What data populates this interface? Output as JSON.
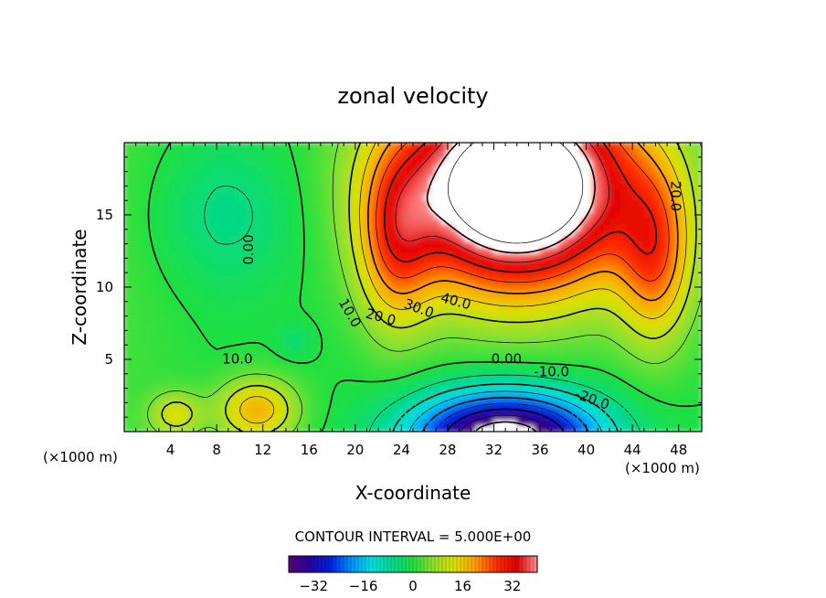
{
  "chart_data": {
    "type": "heatmap",
    "title": "zonal velocity",
    "xlabel": "X-coordinate",
    "ylabel": "Z-coordinate",
    "x_unit": "(×1000 m)",
    "x_unit_right": "(×1000 m)",
    "xlim": [
      0,
      50
    ],
    "ylim": [
      0,
      20
    ],
    "x_ticks": [
      4,
      8,
      12,
      16,
      20,
      24,
      28,
      32,
      36,
      40,
      44,
      48
    ],
    "y_ticks": [
      5,
      10,
      15
    ],
    "contour_interval_text": "CONTOUR INTERVAL = 5.000E+00",
    "colorbar": {
      "range": [
        -40,
        40
      ],
      "ticks": [
        -32,
        -16,
        0,
        16,
        32
      ],
      "colors": [
        "#5a0078",
        "#2a00a0",
        "#0020e0",
        "#0090ff",
        "#00e0e0",
        "#00d890",
        "#20e040",
        "#90e030",
        "#e0e000",
        "#ffa000",
        "#ff3000",
        "#e00000",
        "#ff9090"
      ]
    },
    "contour_labels": [
      {
        "text": "0.00",
        "x": 10.8,
        "y": 12.6,
        "rotate": -90
      },
      {
        "text": "10.0",
        "x": 9.8,
        "y": 5.0,
        "rotate": 0
      },
      {
        "text": "10.0",
        "x": 19.5,
        "y": 8.2,
        "rotate": 60
      },
      {
        "text": "20.0",
        "x": 22.2,
        "y": 7.9,
        "rotate": 15
      },
      {
        "text": "30.0",
        "x": 25.5,
        "y": 8.5,
        "rotate": 20
      },
      {
        "text": "40.0",
        "x": 28.7,
        "y": 9.0,
        "rotate": 15
      },
      {
        "text": "20.0",
        "x": 47.7,
        "y": 16.3,
        "rotate": 90
      },
      {
        "text": "0.00",
        "x": 33.1,
        "y": 5.0,
        "rotate": 0
      },
      {
        "text": "-10.0",
        "x": 37.0,
        "y": 4.1,
        "rotate": 0
      },
      {
        "text": "-20.0",
        "x": 40.5,
        "y": 2.2,
        "rotate": 20
      }
    ],
    "field": {
      "description": "2D zonal velocity field; strong positive jet (>40) at upper center-right, negative core (<-30) near bottom center",
      "max_region": {
        "x": [
          24,
          44
        ],
        "y": [
          9,
          20
        ],
        "value": ">40"
      },
      "min_region": {
        "x": [
          28,
          40
        ],
        "y": [
          0,
          1.5
        ],
        "value": "<-32"
      }
    }
  }
}
